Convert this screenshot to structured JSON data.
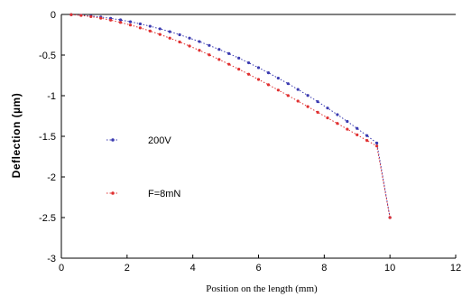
{
  "chart_data": {
    "type": "line",
    "title": "",
    "xlabel": "Position on the length (mm)",
    "ylabel": "Deflection (µm)",
    "xlim": [
      0,
      12
    ],
    "ylim": [
      -3,
      0
    ],
    "x_ticks": [
      "0",
      "2",
      "4",
      "6",
      "8",
      "10",
      "12"
    ],
    "y_ticks": [
      "0",
      "-0.5",
      "-1",
      "-1.5",
      "-2",
      "-2.5",
      "-3"
    ],
    "grid": false,
    "legend_position": "left-middle",
    "series": [
      {
        "name": "200V",
        "color": "#3a3ab0",
        "marker": "dot",
        "x": [
          0.3,
          0.6,
          0.9,
          1.2,
          1.5,
          1.8,
          2.1,
          2.4,
          2.7,
          3.0,
          3.3,
          3.6,
          3.9,
          4.2,
          4.5,
          4.8,
          5.1,
          5.4,
          5.7,
          6.0,
          6.3,
          6.6,
          6.9,
          7.2,
          7.5,
          7.8,
          8.1,
          8.4,
          8.7,
          9.0,
          9.3,
          9.6,
          10.0
        ],
        "y": [
          -0.003,
          -0.009,
          -0.019,
          -0.032,
          -0.048,
          -0.067,
          -0.09,
          -0.116,
          -0.145,
          -0.177,
          -0.212,
          -0.25,
          -0.291,
          -0.334,
          -0.381,
          -0.43,
          -0.482,
          -0.537,
          -0.595,
          -0.655,
          -0.718,
          -0.784,
          -0.852,
          -0.923,
          -0.997,
          -1.073,
          -1.152,
          -1.233,
          -1.317,
          -1.403,
          -1.492,
          -1.583,
          -2.5
        ]
      },
      {
        "name": "F=8mN",
        "color": "#e03030",
        "marker": "dot",
        "x": [
          0.3,
          0.6,
          0.9,
          1.2,
          1.5,
          1.8,
          2.1,
          2.4,
          2.7,
          3.0,
          3.3,
          3.6,
          3.9,
          4.2,
          4.5,
          4.8,
          5.1,
          5.4,
          5.7,
          6.0,
          6.3,
          6.6,
          6.9,
          7.2,
          7.5,
          7.8,
          8.1,
          8.4,
          8.7,
          9.0,
          9.3,
          9.6,
          10.0
        ],
        "y": [
          -0.003,
          -0.012,
          -0.027,
          -0.046,
          -0.07,
          -0.098,
          -0.13,
          -0.165,
          -0.204,
          -0.246,
          -0.291,
          -0.339,
          -0.389,
          -0.442,
          -0.497,
          -0.554,
          -0.613,
          -0.674,
          -0.736,
          -0.8,
          -0.865,
          -0.931,
          -0.998,
          -1.066,
          -1.135,
          -1.204,
          -1.273,
          -1.342,
          -1.412,
          -1.482,
          -1.551,
          -1.62,
          -2.5
        ]
      }
    ]
  }
}
